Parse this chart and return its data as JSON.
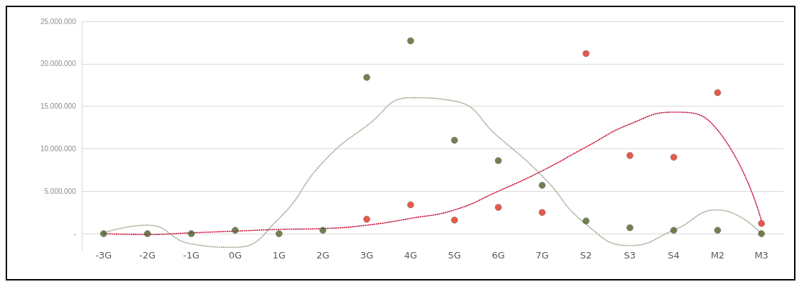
{
  "chart_data": {
    "type": "scatter",
    "categories": [
      "-3G",
      "-2G",
      "-1G",
      "0G",
      "1G",
      "2G",
      "3G",
      "4G",
      "5G",
      "6G",
      "7G",
      "S2",
      "S3",
      "S4",
      "M2",
      "M3"
    ],
    "series": [
      {
        "type": "line",
        "color": "#a3ab93",
        "line_style": "dotted",
        "marker": "none",
        "values": [
          100000,
          1000000,
          -1200000,
          -1600000,
          1800000,
          8400000,
          12700000,
          16000000,
          15600000,
          11400000,
          6800000,
          1100000,
          -1400000,
          400000,
          2800000,
          0
        ]
      },
      {
        "type": "line",
        "color": "#c8143c",
        "line_style": "dotted",
        "marker": "none",
        "values": [
          0,
          -100000,
          100000,
          300000,
          500000,
          600000,
          1000000,
          1800000,
          2800000,
          5000000,
          7400000,
          10200000,
          12900000,
          14300000,
          12200000,
          1500000
        ]
      },
      {
        "color": "#e0301e",
        "marker": "circle",
        "values": [
          null,
          null,
          null,
          null,
          null,
          null,
          1700000,
          3400000,
          1600000,
          3100000,
          2500000,
          21200000,
          9200000,
          9000000,
          16600000,
          1200000
        ]
      },
      {
        "color": "#4f6228",
        "marker": "circle",
        "values": [
          0,
          0,
          0,
          400000,
          0,
          400000,
          18400000,
          22700000,
          11000000,
          8600000,
          5700000,
          1500000,
          700000,
          400000,
          400000,
          0
        ]
      }
    ],
    "ylim": [
      -2000000,
      25000000
    ],
    "yticks": [
      {
        "value": 0,
        "label": "-"
      },
      {
        "value": 5000000,
        "label": "5.000.000"
      },
      {
        "value": 10000000,
        "label": "10.000.000"
      },
      {
        "value": 15000000,
        "label": "15.000.000"
      },
      {
        "value": 20000000,
        "label": "20.000.000"
      },
      {
        "value": 25000000,
        "label": "25.000.000"
      }
    ],
    "grid": "y"
  }
}
